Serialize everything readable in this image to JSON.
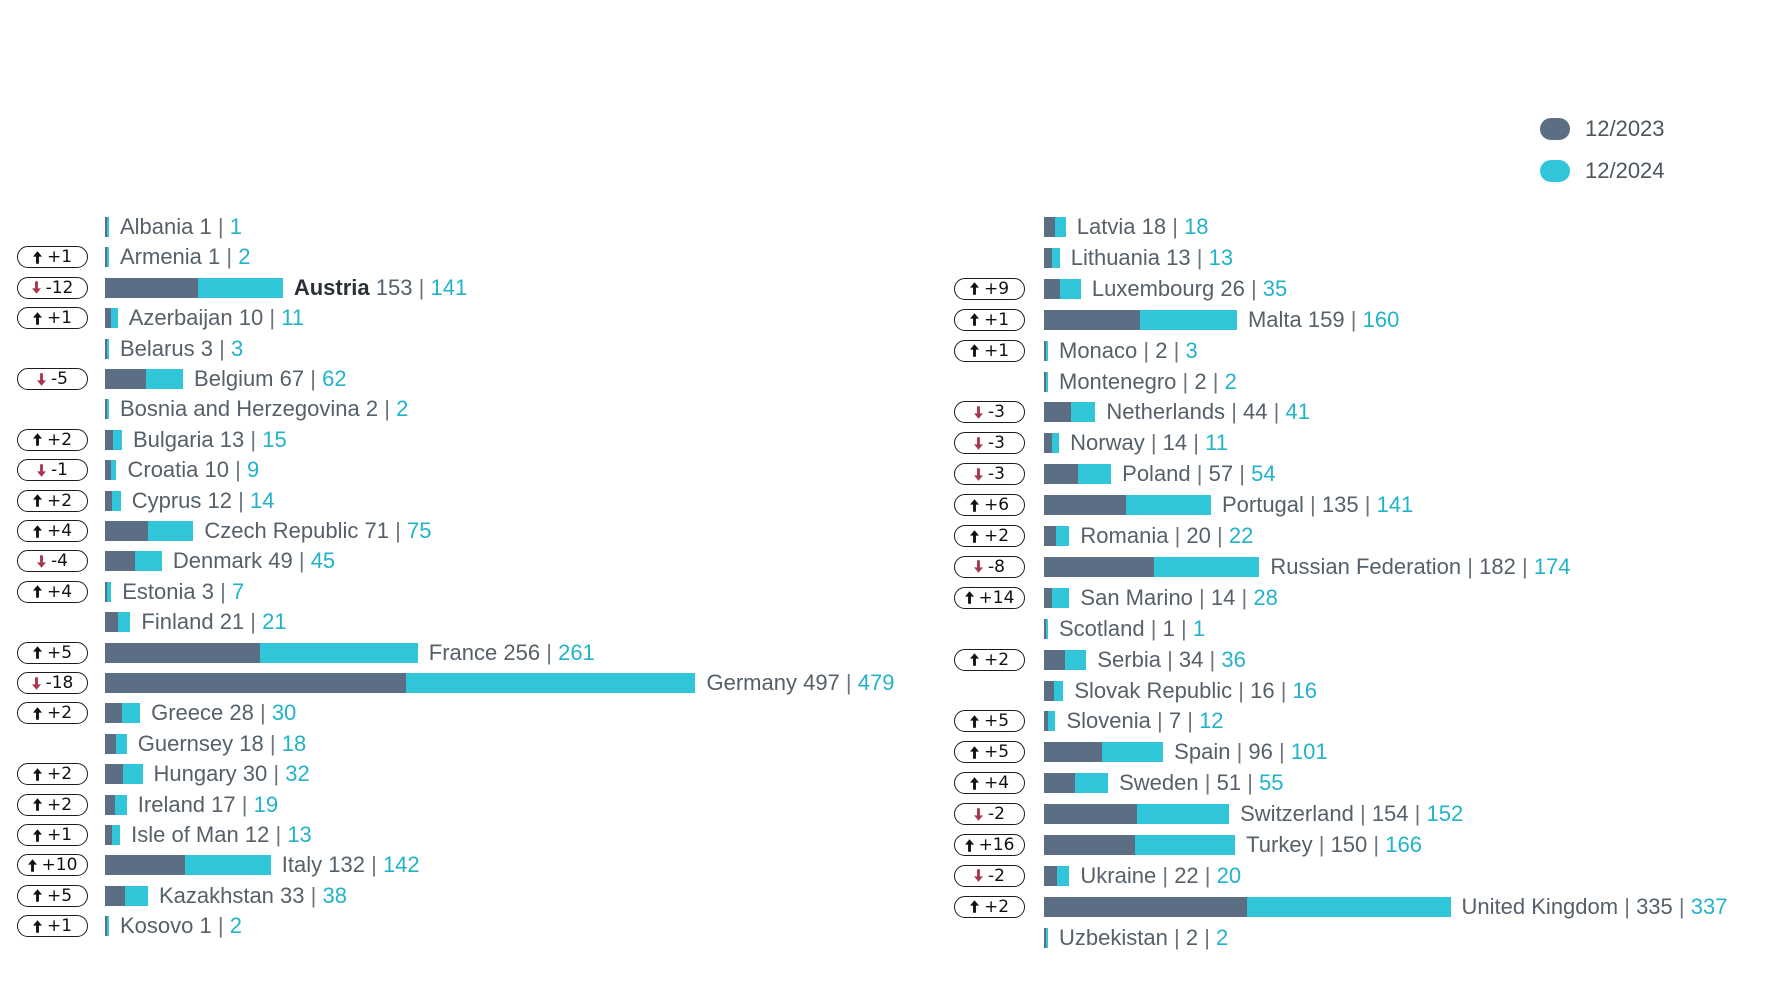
{
  "chart_data": {
    "type": "bar",
    "orientation": "horizontal",
    "stacked": true,
    "legend_position": "top-right",
    "value_separator": "|",
    "series": [
      {
        "name": "12/2023",
        "color": "#5b6e83"
      },
      {
        "name": "12/2024",
        "color": "#31c5d9"
      }
    ],
    "panels": [
      {
        "rows": [
          {
            "category": "Albania",
            "values": [
              1,
              1
            ]
          },
          {
            "category": "Armenia",
            "values": [
              1,
              2
            ],
            "change": "+1"
          },
          {
            "category": "Austria",
            "values": [
              153,
              141
            ],
            "change": "-12",
            "emphasis": true
          },
          {
            "category": "Azerbaijan",
            "values": [
              10,
              11
            ],
            "change": "+1"
          },
          {
            "category": "Belarus",
            "values": [
              3,
              3
            ]
          },
          {
            "category": "Belgium",
            "values": [
              67,
              62
            ],
            "change": "-5"
          },
          {
            "category": "Bosnia and Herzegovina",
            "values": [
              2,
              2
            ]
          },
          {
            "category": "Bulgaria",
            "values": [
              13,
              15
            ],
            "change": "+2"
          },
          {
            "category": "Croatia",
            "values": [
              10,
              9
            ],
            "change": "-1"
          },
          {
            "category": "Cyprus",
            "values": [
              12,
              14
            ],
            "change": "+2"
          },
          {
            "category": "Czech Republic",
            "values": [
              71,
              75
            ],
            "change": "+4"
          },
          {
            "category": "Denmark",
            "values": [
              49,
              45
            ],
            "change": "-4"
          },
          {
            "category": "Estonia",
            "values": [
              3,
              7
            ],
            "change": "+4"
          },
          {
            "category": "Finland",
            "values": [
              21,
              21
            ]
          },
          {
            "category": "France",
            "values": [
              256,
              261
            ],
            "change": "+5"
          },
          {
            "category": "Germany",
            "values": [
              497,
              479
            ],
            "change": "-18"
          },
          {
            "category": "Greece",
            "values": [
              28,
              30
            ],
            "change": "+2"
          },
          {
            "category": "Guernsey",
            "values": [
              18,
              18
            ]
          },
          {
            "category": "Hungary",
            "values": [
              30,
              32
            ],
            "change": "+2"
          },
          {
            "category": "Ireland",
            "values": [
              17,
              19
            ],
            "change": "+2"
          },
          {
            "category": "Isle of Man",
            "values": [
              12,
              13
            ],
            "change": "+1"
          },
          {
            "category": "Italy",
            "values": [
              132,
              142
            ],
            "change": "+10"
          },
          {
            "category": "Kazakhstan",
            "values": [
              33,
              38
            ],
            "change": "+5"
          },
          {
            "category": "Kosovo",
            "values": [
              1,
              2
            ],
            "change": "+1"
          }
        ]
      },
      {
        "rows": [
          {
            "category": "Latvia",
            "values": [
              18,
              18
            ]
          },
          {
            "category": "Lithuania",
            "values": [
              13,
              13
            ]
          },
          {
            "category": "Luxembourg",
            "values": [
              26,
              35
            ],
            "change": "+9"
          },
          {
            "category": "Malta",
            "values": [
              159,
              160
            ],
            "change": "+1"
          },
          {
            "category": "Monaco",
            "name_separator": "|",
            "values": [
              2,
              3
            ],
            "change": "+1"
          },
          {
            "category": "Montenegro",
            "name_separator": "|",
            "values": [
              2,
              2
            ]
          },
          {
            "category": "Netherlands",
            "name_separator": "|",
            "values": [
              44,
              41
            ],
            "change": "-3"
          },
          {
            "category": "Norway",
            "name_separator": "|",
            "values": [
              14,
              11
            ],
            "change": "-3"
          },
          {
            "category": "Poland",
            "name_separator": "|",
            "values": [
              57,
              54
            ],
            "change": "-3"
          },
          {
            "category": "Portugal",
            "name_separator": "|",
            "values": [
              135,
              141
            ],
            "change": "+6"
          },
          {
            "category": "Romania",
            "name_separator": "|",
            "values": [
              20,
              22
            ],
            "change": "+2"
          },
          {
            "category": "Russian Federation",
            "name_separator": "|",
            "values": [
              182,
              174
            ],
            "change": "-8"
          },
          {
            "category": "San Marino",
            "name_separator": "|",
            "values": [
              14,
              28
            ],
            "change": "+14"
          },
          {
            "category": "Scotland",
            "name_separator": "|",
            "values": [
              1,
              1
            ]
          },
          {
            "category": "Serbia",
            "name_separator": "|",
            "values": [
              34,
              36
            ],
            "change": "+2"
          },
          {
            "category": "Slovak Republic",
            "name_separator": "|",
            "values": [
              16,
              16
            ]
          },
          {
            "category": "Slovenia",
            "name_separator": "|",
            "values": [
              7,
              12
            ],
            "change": "+5"
          },
          {
            "category": "Spain",
            "name_separator": "|",
            "values": [
              96,
              101
            ],
            "change": "+5"
          },
          {
            "category": "Sweden",
            "name_separator": "|",
            "values": [
              51,
              55
            ],
            "change": "+4"
          },
          {
            "category": "Switzerland",
            "name_separator": "|",
            "values": [
              154,
              152
            ],
            "change": "-2"
          },
          {
            "category": "Turkey",
            "name_separator": "|",
            "values": [
              150,
              166
            ],
            "change": "+16"
          },
          {
            "category": "Ukraine",
            "name_separator": "|",
            "values": [
              22,
              20
            ],
            "change": "-2"
          },
          {
            "category": "United Kingdom",
            "name_separator": "|",
            "values": [
              335,
              337
            ],
            "change": "+2"
          },
          {
            "category": "Uzbekistan",
            "name_separator": "|",
            "values": [
              2,
              2
            ]
          }
        ]
      }
    ]
  }
}
